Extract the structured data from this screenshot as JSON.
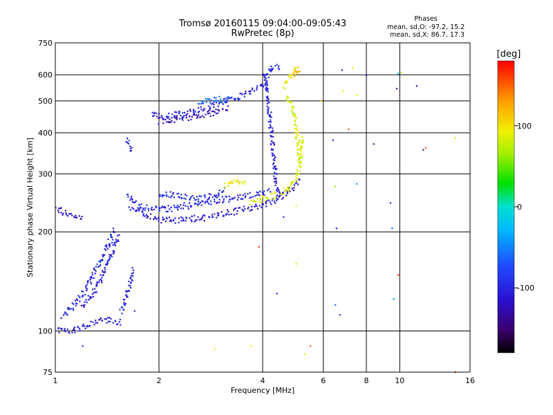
{
  "chart_data": {
    "type": "scatter",
    "title": "Tromsø 20160115 09:04:00-09:05:43",
    "subtitle": "RwPretec (8p)",
    "phase_box": {
      "heading": "Phases",
      "line_o": "mean, sd,O: -97.2, 15.2",
      "line_x": "mean, sd,X:  86.7, 17.3"
    },
    "xlabel": "Frequency [MHz]",
    "ylabel": "Stationary phase Virtual Height [km]",
    "x_scale": "log",
    "y_scale": "log",
    "xlim": [
      1,
      16
    ],
    "ylim": [
      75,
      750
    ],
    "x_ticks": [
      {
        "value": 1,
        "label": "1"
      },
      {
        "value": 2,
        "label": "2"
      },
      {
        "value": 4,
        "label": "4"
      },
      {
        "value": 6,
        "label": "6"
      },
      {
        "value": 8,
        "label": "8"
      },
      {
        "value": 10,
        "label": "10"
      },
      {
        "value": 16,
        "label": "16"
      }
    ],
    "y_ticks": [
      {
        "value": 75,
        "label": "75"
      },
      {
        "value": 100,
        "label": "100"
      },
      {
        "value": 200,
        "label": "200"
      },
      {
        "value": 300,
        "label": "300"
      },
      {
        "value": 400,
        "label": "400"
      },
      {
        "value": 500,
        "label": "500"
      },
      {
        "value": 600,
        "label": "600"
      },
      {
        "value": 750,
        "label": "750"
      }
    ],
    "grid": true,
    "colorbar": {
      "label": "[deg]",
      "range": [
        -180,
        180
      ],
      "ticks": [
        {
          "value": 100,
          "label": "100"
        },
        {
          "value": 0,
          "label": "0"
        },
        {
          "value": -100,
          "label": "-100"
        }
      ]
    },
    "traces": [
      {
        "phase": -110,
        "points": [
          [
            1.0,
            235
          ],
          [
            1.05,
            230
          ],
          [
            1.1,
            225
          ],
          [
            1.15,
            221
          ],
          [
            1.2,
            220
          ]
        ]
      },
      {
        "phase": -105,
        "points": [
          [
            1.0,
            102
          ],
          [
            1.05,
            100
          ],
          [
            1.1,
            100
          ],
          [
            1.15,
            101
          ],
          [
            1.2,
            103
          ],
          [
            1.25,
            105
          ],
          [
            1.3,
            106
          ],
          [
            1.35,
            107
          ],
          [
            1.4,
            108
          ],
          [
            1.45,
            108
          ],
          [
            1.5,
            107
          ],
          [
            1.55,
            106
          ]
        ]
      },
      {
        "phase": -100,
        "points": [
          [
            1.05,
            110
          ],
          [
            1.1,
            116
          ],
          [
            1.15,
            122
          ],
          [
            1.2,
            130
          ],
          [
            1.25,
            140
          ],
          [
            1.3,
            150
          ],
          [
            1.35,
            162
          ],
          [
            1.4,
            175
          ],
          [
            1.45,
            190
          ],
          [
            1.48,
            205
          ]
        ]
      },
      {
        "phase": -105,
        "points": [
          [
            1.2,
            118
          ],
          [
            1.25,
            125
          ],
          [
            1.3,
            132
          ],
          [
            1.35,
            142
          ],
          [
            1.4,
            155
          ],
          [
            1.45,
            170
          ],
          [
            1.5,
            185
          ],
          [
            1.55,
            195
          ]
        ]
      },
      {
        "phase": -100,
        "points": [
          [
            1.55,
            115
          ],
          [
            1.6,
            125
          ],
          [
            1.65,
            140
          ],
          [
            1.68,
            155
          ]
        ]
      },
      {
        "phase": -102,
        "points": [
          [
            1.6,
            380
          ],
          [
            1.62,
            372
          ],
          [
            1.65,
            365
          ],
          [
            1.67,
            352
          ]
        ]
      },
      {
        "phase": -100,
        "points": [
          [
            1.62,
            258
          ],
          [
            1.7,
            245
          ],
          [
            1.8,
            238
          ],
          [
            1.9,
            235
          ],
          [
            2.0,
            234
          ],
          [
            2.2,
            236
          ],
          [
            2.4,
            240
          ],
          [
            2.6,
            243
          ],
          [
            2.8,
            246
          ],
          [
            3.0,
            250
          ],
          [
            3.2,
            253
          ],
          [
            3.4,
            256
          ],
          [
            3.6,
            258
          ],
          [
            3.8,
            260
          ],
          [
            4.0,
            262
          ],
          [
            4.2,
            266
          ]
        ]
      },
      {
        "phase": -110,
        "points": [
          [
            1.65,
            240
          ],
          [
            1.8,
            228
          ],
          [
            1.9,
            222
          ],
          [
            2.0,
            218
          ],
          [
            2.2,
            217
          ],
          [
            2.4,
            218
          ],
          [
            2.6,
            220
          ],
          [
            2.8,
            222
          ],
          [
            3.0,
            225
          ],
          [
            3.2,
            229
          ],
          [
            3.4,
            232
          ],
          [
            3.6,
            235
          ],
          [
            3.8,
            238
          ],
          [
            4.0,
            242
          ],
          [
            4.2,
            247
          ],
          [
            4.4,
            252
          ],
          [
            4.6,
            258
          ],
          [
            4.8,
            266
          ],
          [
            5.0,
            278
          ],
          [
            5.1,
            290
          ]
        ]
      },
      {
        "phase": -95,
        "points": [
          [
            2.0,
            262
          ],
          [
            2.2,
            258
          ],
          [
            2.4,
            255
          ],
          [
            2.6,
            252
          ],
          [
            2.8,
            255
          ],
          [
            3.0,
            262
          ],
          [
            3.1,
            270
          ]
        ]
      },
      {
        "phase": 95,
        "points": [
          [
            3.1,
            275
          ],
          [
            3.3,
            282
          ],
          [
            3.5,
            285
          ],
          [
            3.6,
            280
          ]
        ]
      },
      {
        "phase": 90,
        "points": [
          [
            3.7,
            245
          ],
          [
            3.9,
            250
          ],
          [
            4.1,
            254
          ],
          [
            4.3,
            258
          ],
          [
            4.5,
            262
          ],
          [
            4.7,
            270
          ],
          [
            4.9,
            282
          ],
          [
            5.0,
            295
          ],
          [
            5.1,
            312
          ],
          [
            5.15,
            330
          ],
          [
            5.2,
            360
          ],
          [
            5.22,
            390
          ]
        ]
      },
      {
        "phase": -100,
        "points": [
          [
            1.9,
            455
          ],
          [
            2.0,
            452
          ],
          [
            2.1,
            450
          ],
          [
            2.2,
            452
          ],
          [
            2.4,
            460
          ],
          [
            2.6,
            470
          ],
          [
            2.8,
            480
          ],
          [
            3.0,
            492
          ],
          [
            3.2,
            505
          ],
          [
            3.4,
            515
          ],
          [
            3.6,
            525
          ],
          [
            3.8,
            540
          ],
          [
            4.0,
            560
          ],
          [
            4.1,
            590
          ],
          [
            4.2,
            620
          ],
          [
            4.3,
            640
          ],
          [
            4.5,
            630
          ]
        ]
      },
      {
        "phase": -120,
        "points": [
          [
            2.0,
            435
          ],
          [
            2.2,
            440
          ],
          [
            2.4,
            445
          ],
          [
            2.6,
            450
          ],
          [
            2.8,
            458
          ],
          [
            3.0,
            465
          ],
          [
            3.2,
            475
          ]
        ]
      },
      {
        "phase": -60,
        "points": [
          [
            2.6,
            490
          ],
          [
            2.8,
            500
          ],
          [
            3.0,
            505
          ],
          [
            3.2,
            510
          ]
        ]
      },
      {
        "phase": -105,
        "points": [
          [
            4.05,
            600
          ],
          [
            4.1,
            560
          ],
          [
            4.15,
            500
          ],
          [
            4.2,
            440
          ],
          [
            4.25,
            390
          ],
          [
            4.3,
            340
          ],
          [
            4.35,
            300
          ],
          [
            4.4,
            270
          ],
          [
            4.45,
            255
          ]
        ]
      },
      {
        "phase": 95,
        "points": [
          [
            4.6,
            555
          ],
          [
            4.7,
            575
          ],
          [
            4.8,
            590
          ],
          [
            4.9,
            605
          ],
          [
            5.0,
            625
          ],
          [
            5.05,
            640
          ]
        ]
      },
      {
        "phase": 85,
        "points": [
          [
            4.7,
            520
          ],
          [
            4.8,
            500
          ],
          [
            4.9,
            470
          ],
          [
            4.95,
            440
          ],
          [
            5.0,
            410
          ],
          [
            5.05,
            380
          ],
          [
            5.1,
            350
          ],
          [
            5.15,
            320
          ]
        ]
      },
      {
        "phase": 120,
        "points": [
          [
            5.0,
            600
          ],
          [
            5.08,
            630
          ]
        ]
      }
    ],
    "scattered_points": [
      [
        5.9,
        500,
        120
      ],
      [
        6.4,
        380,
        -100
      ],
      [
        6.5,
        275,
        60
      ],
      [
        6.55,
        205,
        -100
      ],
      [
        6.5,
        120,
        -60
      ],
      [
        6.7,
        112,
        -100
      ],
      [
        6.8,
        620,
        -105
      ],
      [
        6.85,
        535,
        90
      ],
      [
        7.1,
        410,
        150
      ],
      [
        7.3,
        630,
        100
      ],
      [
        7.5,
        280,
        -40
      ],
      [
        7.5,
        520,
        90
      ],
      [
        8.0,
        598,
        -100
      ],
      [
        8.4,
        370,
        -100
      ],
      [
        9.4,
        245,
        -90
      ],
      [
        9.5,
        205,
        -60
      ],
      [
        9.6,
        125,
        -40
      ],
      [
        9.8,
        545,
        -100
      ],
      [
        9.9,
        605,
        -20
      ],
      [
        9.9,
        148,
        170
      ],
      [
        10.1,
        610,
        70
      ],
      [
        11.2,
        555,
        -110
      ],
      [
        11.7,
        355,
        -120
      ],
      [
        11.9,
        360,
        150
      ],
      [
        14.5,
        385,
        90
      ],
      [
        14.5,
        75,
        170
      ],
      [
        2.9,
        88,
        100
      ],
      [
        5.3,
        85,
        90
      ],
      [
        5.5,
        90,
        150
      ],
      [
        4.4,
        130,
        -100
      ],
      [
        5.0,
        160,
        110
      ],
      [
        3.9,
        180,
        160
      ],
      [
        4.6,
        222,
        -100
      ],
      [
        5.0,
        240,
        90
      ],
      [
        1.2,
        90,
        -100
      ],
      [
        1.7,
        115,
        -100
      ],
      [
        3.7,
        90,
        100
      ]
    ]
  }
}
